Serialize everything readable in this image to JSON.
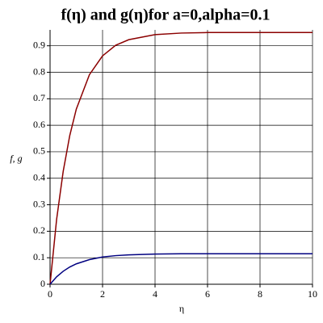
{
  "chart_data": {
    "type": "line",
    "title": "f(η) and g(η)for a=0,alpha=0.1",
    "x_label": "η",
    "y_label": "f, g",
    "x": [
      0,
      0.25,
      0.5,
      0.75,
      1,
      1.5,
      2,
      2.5,
      3,
      4,
      5,
      6,
      7,
      8,
      9,
      10
    ],
    "series": [
      {
        "name": "f",
        "color": "#8b0000",
        "values": [
          0,
          0.245,
          0.426,
          0.561,
          0.661,
          0.791,
          0.862,
          0.902,
          0.923,
          0.942,
          0.948,
          0.95,
          0.95,
          0.95,
          0.95,
          0.95
        ]
      },
      {
        "name": "g",
        "color": "#000080",
        "values": [
          0,
          0.028,
          0.049,
          0.065,
          0.077,
          0.093,
          0.103,
          0.108,
          0.111,
          0.114,
          0.115,
          0.115,
          0.115,
          0.115,
          0.115,
          0.115
        ]
      }
    ],
    "xlim": [
      0,
      10
    ],
    "xticks": [
      0,
      2,
      4,
      6,
      8,
      10
    ],
    "ylim": [
      0,
      0.96
    ],
    "yticks": [
      0,
      0.1,
      0.2,
      0.3,
      0.4,
      0.5,
      0.6,
      0.7,
      0.8,
      0.9
    ],
    "grid": true
  }
}
